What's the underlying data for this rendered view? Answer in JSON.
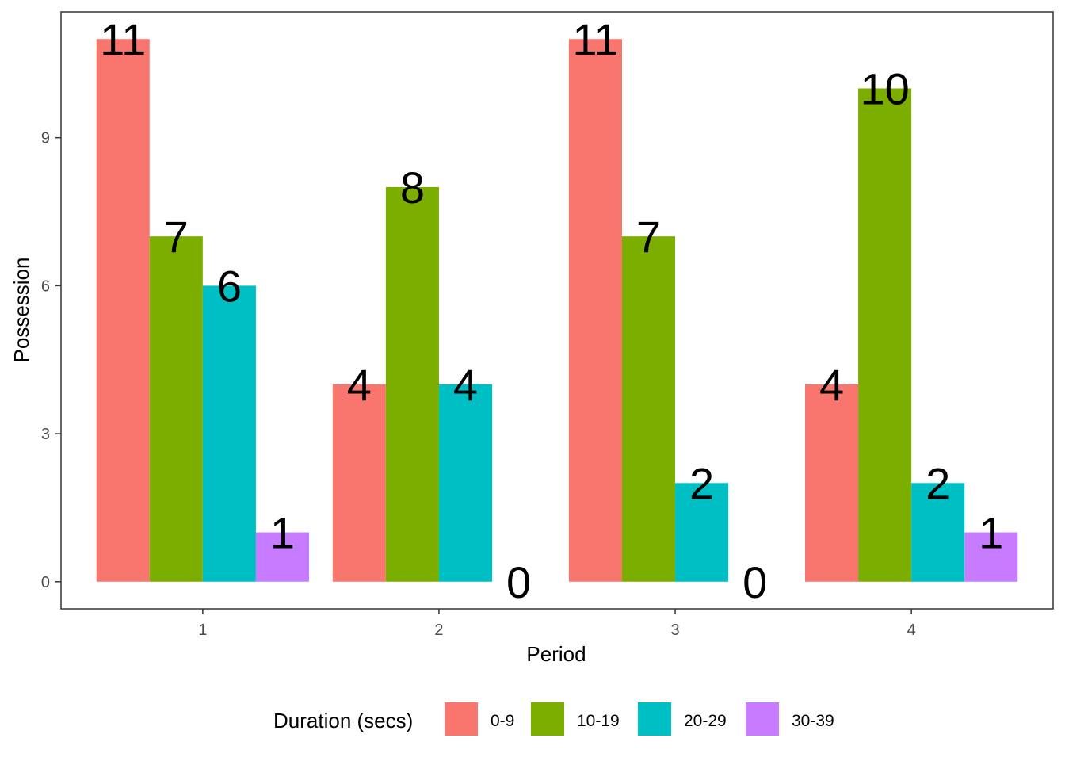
{
  "chart_data": {
    "type": "bar",
    "xlabel": "Period",
    "ylabel": "Possession",
    "categories": [
      "1",
      "2",
      "3",
      "4"
    ],
    "series": [
      {
        "name": "0-9",
        "color": "#F8766D",
        "values": [
          11,
          4,
          11,
          4
        ]
      },
      {
        "name": "10-19",
        "color": "#7CAE00",
        "values": [
          7,
          8,
          7,
          10
        ]
      },
      {
        "name": "20-29",
        "color": "#00BFC4",
        "values": [
          6,
          4,
          2,
          2
        ]
      },
      {
        "name": "30-39",
        "color": "#C77CFF",
        "values": [
          1,
          0,
          0,
          1
        ]
      }
    ],
    "y_ticks": [
      0,
      3,
      6,
      9
    ],
    "ylim": [
      -0.55,
      11.55
    ],
    "legend": {
      "title": "Duration (secs)",
      "position": "bottom"
    },
    "grid": false
  }
}
